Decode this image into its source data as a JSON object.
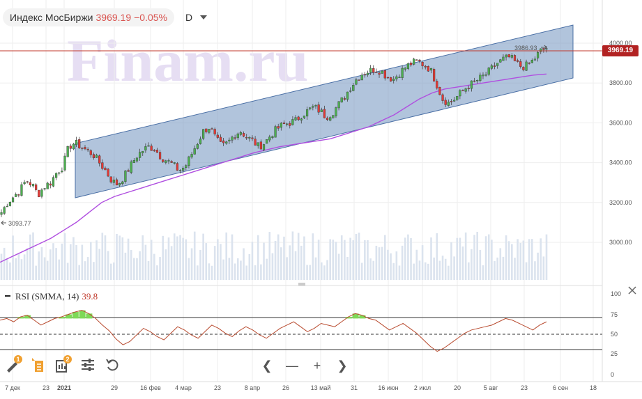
{
  "header": {
    "name": "Индекс МосБиржи",
    "value": "3969.19",
    "change": "−0.05%",
    "timeframe": "D"
  },
  "price_tag": "3969.19",
  "max_label": "3986.93",
  "min_label": "3093.77",
  "watermark": "Finam.ru",
  "rsi": {
    "label": "RSI (SMMA, 14)",
    "value": "39.8",
    "levels": [
      "100",
      "75",
      "50",
      "25",
      "0"
    ]
  },
  "colors": {
    "up": "#4caf50",
    "down": "#e53935",
    "ma": "#b04fe0",
    "channel": "#7d9cc4",
    "price_line": "#c0392b",
    "rsi": "#b84a2e"
  },
  "toolbar": {
    "badge1": "1",
    "badge2": "2"
  },
  "chart_data": {
    "type": "candlestick",
    "ylim": [
      2840,
      4140
    ],
    "y_ticks": [
      "4000.00",
      "3800.00",
      "3600.00",
      "3400.00",
      "3200.00",
      "3000.00"
    ],
    "x_ticks": [
      "7 дек",
      "23",
      "2021",
      "29",
      "16 фев",
      "4 мар",
      "23",
      "8 апр",
      "26",
      "13 май",
      "31",
      "16 июн",
      "2 июл",
      "20",
      "5 авг",
      "23",
      "6 сен",
      "18"
    ],
    "close_path": [
      3150,
      3200,
      3230,
      3260,
      3310,
      3290,
      3240,
      3280,
      3300,
      3350,
      3380,
      3480,
      3500,
      3480,
      3460,
      3440,
      3400,
      3360,
      3310,
      3290,
      3330,
      3380,
      3430,
      3460,
      3480,
      3470,
      3430,
      3410,
      3390,
      3360,
      3380,
      3440,
      3500,
      3560,
      3580,
      3520,
      3480,
      3500,
      3540,
      3560,
      3530,
      3510,
      3480,
      3500,
      3540,
      3570,
      3590,
      3600,
      3610,
      3640,
      3660,
      3680,
      3660,
      3630,
      3650,
      3690,
      3730,
      3780,
      3820,
      3850,
      3860,
      3870,
      3860,
      3830,
      3820,
      3850,
      3880,
      3900,
      3910,
      3890,
      3870,
      3800,
      3720,
      3700,
      3720,
      3750,
      3780,
      3800,
      3820,
      3840,
      3870,
      3900,
      3920,
      3930,
      3900,
      3880,
      3890,
      3920,
      3960,
      3975
    ],
    "ma_path": [
      2900,
      2930,
      2960,
      2990,
      3020,
      3060,
      3100,
      3150,
      3200,
      3230,
      3250,
      3270,
      3290,
      3310,
      3330,
      3350,
      3370,
      3390,
      3410,
      3430,
      3450,
      3465,
      3480,
      3490,
      3500,
      3510,
      3520,
      3540,
      3560,
      3580,
      3610,
      3640,
      3680,
      3720,
      3750,
      3770,
      3780,
      3790,
      3800,
      3810,
      3820,
      3830,
      3840,
      3845
    ],
    "volume_levels": [
      0.3,
      0.45,
      0.5,
      0.4,
      0.35,
      0.5,
      0.4,
      0.55,
      0.6,
      0.4,
      0.5,
      0.45
    ],
    "rsi_series": [
      68,
      70,
      66,
      72,
      74,
      68,
      62,
      66,
      70,
      72,
      75,
      78,
      80,
      76,
      70,
      62,
      55,
      45,
      38,
      42,
      50,
      58,
      54,
      48,
      44,
      52,
      60,
      56,
      50,
      46,
      54,
      62,
      58,
      52,
      48,
      55,
      60,
      56,
      50,
      46,
      52,
      58,
      62,
      66,
      60,
      54,
      58,
      64,
      62,
      60,
      66,
      72,
      76,
      74,
      70,
      68,
      62,
      56,
      60,
      64,
      58,
      52,
      44,
      36,
      30,
      34,
      40,
      46,
      52,
      56,
      58,
      60,
      62,
      66,
      70,
      68,
      64,
      60,
      56,
      62,
      66
    ]
  }
}
